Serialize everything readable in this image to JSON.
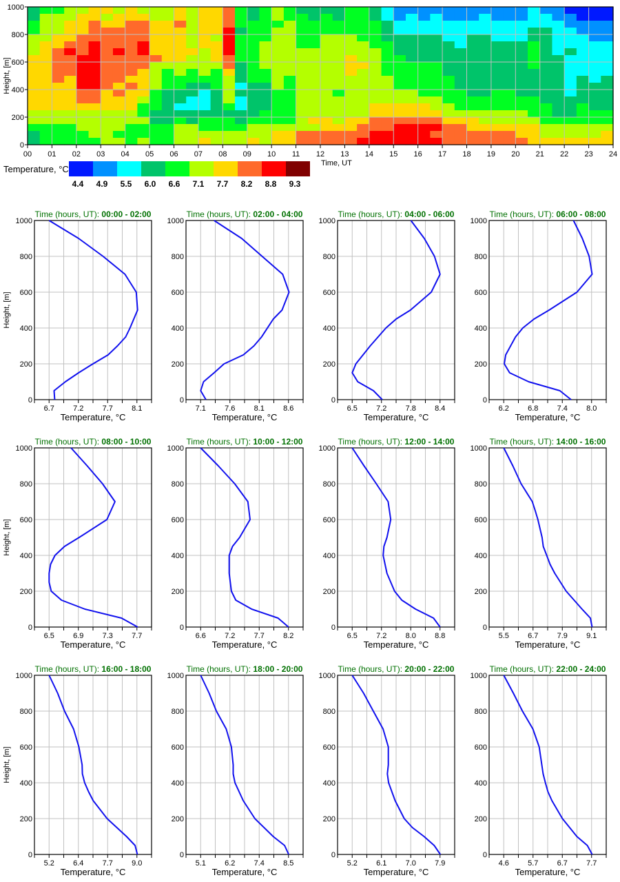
{
  "chart_data": [
    {
      "type": "heatmap",
      "xlabel": "Time, UT",
      "ylabel": "Height, [m]",
      "xlim": [
        0,
        24
      ],
      "ylim": [
        0,
        1000
      ],
      "xticks": [
        "00",
        "01",
        "02",
        "03",
        "04",
        "05",
        "06",
        "07",
        "08",
        "09",
        "10",
        "11",
        "12",
        "13",
        "14",
        "15",
        "16",
        "17",
        "18",
        "19",
        "20",
        "21",
        "22",
        "23",
        "24"
      ],
      "yticks": [
        "0",
        "200",
        "400",
        "600",
        "800",
        "1000"
      ],
      "grid": true,
      "colorbar": {
        "label": "Temperature, °C",
        "colors": [
          "#0019ff",
          "#0091ff",
          "#00ffff",
          "#00c46a",
          "#00ff22",
          "#b4ff00",
          "#ffd800",
          "#ff6a2b",
          "#ff0000",
          "#800000"
        ],
        "boundaries": [
          "4.4",
          "4.9",
          "5.5",
          "6.0",
          "6.6",
          "7.1",
          "7.7",
          "8.2",
          "8.8",
          "9.3"
        ]
      },
      "time_step_hours": 0.5,
      "height_step_m": 50,
      "levels_top_to_bottom": [
        "344556656555656674345433334432111111111112110000",
        "355566566655656674345443434432121211121112211000",
        "455667667766756674444544444443222222222222221111",
        "455667777766656683445544444443222222222223322111",
        "556677777766656584445544555443333322332223322211",
        "566778777866656684455544555544333332333334322222",
        "567878787866665684455555555554333333333334323222",
        "667788777776655674455555556554433333333334332222",
        "667788777755555573455555556654444433333334332222",
        "667788777654545463445555556554444433333333332222",
        "667688776654444453445455555555444443333333332323",
        "666688767654433452335455555555444443333333332333",
        "666677676643332353334455545555554444334433332333",
        "666677666543322352334455555555555544444444333333",
        "666666666443222342334455555566666554444444433433",
        "555555555433333333344455555566666655555554433444",
        "555555555533434443444456656677777766655555444444",
        "444455554444554444555555666777888877666666555555",
        "344445544444555555556677777788888777777766555556",
        "344444554544556555656677777888888877777776666666"
      ]
    },
    {
      "type": "line",
      "title_prefix": "Time (hours, UT): ",
      "time_range": "00:00 - 02:00",
      "xlabel": "Temperature, °C",
      "ylabel": "Height, [m]",
      "xticks": [
        "6.7",
        "7.2",
        "7.7",
        "8.1"
      ],
      "xtick_range": [
        6.7,
        8.1
      ],
      "yticks": [
        "0",
        "200",
        "400",
        "600",
        "800",
        "1000"
      ],
      "ylim": [
        0,
        1000
      ],
      "height": [
        0,
        50,
        100,
        150,
        200,
        250,
        300,
        350,
        400,
        500,
        600,
        700,
        800,
        900,
        1000
      ],
      "temperature": [
        6.79,
        6.78,
        6.96,
        7.17,
        7.4,
        7.64,
        7.79,
        7.92,
        7.99,
        8.11,
        8.09,
        7.91,
        7.56,
        7.17,
        6.7
      ]
    },
    {
      "type": "line",
      "title_prefix": "Time (hours, UT): ",
      "time_range": "02:00 - 04:00",
      "xlabel": "Temperature, °C",
      "ylabel": "",
      "xticks": [
        "7.1",
        "7.6",
        "8.1",
        "8.6"
      ],
      "xtick_range": [
        7.1,
        8.6
      ],
      "yticks": [
        "0",
        "200",
        "400",
        "600",
        "800",
        "1000"
      ],
      "ylim": [
        0,
        1000
      ],
      "height": [
        0,
        50,
        100,
        150,
        200,
        250,
        300,
        350,
        450,
        500,
        600,
        700,
        800,
        900,
        1000
      ],
      "temperature": [
        7.19,
        7.1,
        7.15,
        7.33,
        7.5,
        7.83,
        8.01,
        8.14,
        8.34,
        8.49,
        8.61,
        8.5,
        8.15,
        7.8,
        7.33
      ]
    },
    {
      "type": "line",
      "title_prefix": "Time (hours, UT): ",
      "time_range": "04:00 - 06:00",
      "xlabel": "Temperature, °C",
      "ylabel": "",
      "xticks": [
        "6.5",
        "7.2",
        "7.8",
        "8.4"
      ],
      "xtick_range": [
        6.5,
        8.4
      ],
      "yticks": [
        "0",
        "200",
        "400",
        "600",
        "800",
        "1000"
      ],
      "ylim": [
        0,
        1000
      ],
      "height": [
        0,
        50,
        100,
        150,
        200,
        300,
        400,
        450,
        500,
        600,
        700,
        800,
        900,
        1000
      ],
      "temperature": [
        7.15,
        6.96,
        6.62,
        6.5,
        6.58,
        6.89,
        7.23,
        7.45,
        7.76,
        8.21,
        8.4,
        8.28,
        8.06,
        7.77
      ]
    },
    {
      "type": "line",
      "title_prefix": "Time (hours, UT): ",
      "time_range": "06:00 - 08:00",
      "xlabel": "Temperature, °C",
      "ylabel": "",
      "xticks": [
        "6.2",
        "6.8",
        "7.4",
        "8.0"
      ],
      "xtick_range": [
        6.2,
        8.0
      ],
      "yticks": [
        "0",
        "200",
        "400",
        "600",
        "800",
        "1000"
      ],
      "ylim": [
        0,
        1000
      ],
      "height": [
        0,
        50,
        100,
        150,
        200,
        250,
        350,
        400,
        450,
        500,
        600,
        700,
        800,
        900,
        1000
      ],
      "temperature": [
        7.58,
        7.35,
        6.71,
        6.32,
        6.21,
        6.24,
        6.44,
        6.59,
        6.82,
        7.13,
        7.7,
        8.01,
        7.95,
        7.81,
        7.63
      ]
    },
    {
      "type": "line",
      "title_prefix": "Time (hours, UT): ",
      "time_range": "08:00 - 10:00",
      "xlabel": "Temperature, °C",
      "ylabel": "Height, [m]",
      "xticks": [
        "6.5",
        "6.9",
        "7.3",
        "7.7"
      ],
      "xtick_range": [
        6.5,
        7.7
      ],
      "yticks": [
        "0",
        "200",
        "400",
        "600",
        "800",
        "1000"
      ],
      "ylim": [
        0,
        1000
      ],
      "height": [
        0,
        50,
        100,
        150,
        200,
        250,
        300,
        350,
        400,
        450,
        500,
        600,
        700,
        800,
        900,
        1000
      ],
      "temperature": [
        7.71,
        7.49,
        6.99,
        6.67,
        6.53,
        6.5,
        6.5,
        6.52,
        6.58,
        6.71,
        6.91,
        7.29,
        7.4,
        7.23,
        7.02,
        6.8
      ]
    },
    {
      "type": "line",
      "title_prefix": "Time (hours, UT): ",
      "time_range": "10:00 - 12:00",
      "xlabel": "Temperature, °C",
      "ylabel": "",
      "xticks": [
        "6.6",
        "7.2",
        "7.7",
        "8.2"
      ],
      "xtick_range": [
        6.6,
        8.2
      ],
      "yticks": [
        "0",
        "200",
        "400",
        "600",
        "800",
        "1000"
      ],
      "ylim": [
        0,
        1000
      ],
      "height": [
        0,
        50,
        100,
        150,
        200,
        300,
        400,
        450,
        500,
        600,
        700,
        800,
        900,
        1000
      ],
      "temperature": [
        8.2,
        8.01,
        7.53,
        7.24,
        7.16,
        7.12,
        7.12,
        7.18,
        7.31,
        7.5,
        7.46,
        7.22,
        6.92,
        6.6
      ]
    },
    {
      "type": "line",
      "title_prefix": "Time (hours, UT): ",
      "time_range": "12:00 - 14:00",
      "xlabel": "Temperature, °C",
      "ylabel": "",
      "xticks": [
        "6.5",
        "7.2",
        "8.0",
        "8.8"
      ],
      "xtick_range": [
        6.5,
        8.8
      ],
      "yticks": [
        "0",
        "200",
        "400",
        "600",
        "800",
        "1000"
      ],
      "ylim": [
        0,
        1000
      ],
      "height": [
        0,
        50,
        100,
        150,
        200,
        300,
        400,
        450,
        500,
        600,
        700,
        800,
        900,
        1000
      ],
      "temperature": [
        8.8,
        8.63,
        8.16,
        7.8,
        7.61,
        7.41,
        7.31,
        7.33,
        7.41,
        7.51,
        7.44,
        7.13,
        6.81,
        6.5
      ]
    },
    {
      "type": "line",
      "title_prefix": "Time (hours, UT): ",
      "time_range": "14:00 - 16:00",
      "xlabel": "Temperature, °C",
      "ylabel": "",
      "xticks": [
        "5.5",
        "6.7",
        "7.9",
        "9.1"
      ],
      "xtick_range": [
        5.5,
        9.1
      ],
      "yticks": [
        "0",
        "200",
        "400",
        "600",
        "800",
        "1000"
      ],
      "ylim": [
        0,
        1000
      ],
      "height": [
        0,
        50,
        100,
        200,
        300,
        350,
        400,
        450,
        500,
        600,
        650,
        700,
        800,
        900,
        1000
      ],
      "temperature": [
        9.12,
        9.05,
        8.71,
        8.06,
        7.59,
        7.4,
        7.26,
        7.12,
        7.07,
        6.9,
        6.79,
        6.67,
        6.21,
        5.87,
        5.5
      ]
    },
    {
      "type": "line",
      "title_prefix": "Time (hours, UT): ",
      "time_range": "16:00 - 18:00",
      "xlabel": "Temperature, °C",
      "ylabel": "Height, [m]",
      "xticks": [
        "5.2",
        "6.4",
        "7.7",
        "9.0"
      ],
      "xtick_range": [
        5.2,
        9.0
      ],
      "yticks": [
        "0",
        "200",
        "400",
        "600",
        "800",
        "1000"
      ],
      "ylim": [
        0,
        1000
      ],
      "height": [
        0,
        50,
        100,
        200,
        300,
        350,
        400,
        450,
        500,
        600,
        700,
        800,
        900,
        1000
      ],
      "temperature": [
        9.02,
        8.92,
        8.55,
        7.71,
        7.11,
        6.91,
        6.74,
        6.64,
        6.63,
        6.49,
        6.26,
        5.87,
        5.57,
        5.2
      ]
    },
    {
      "type": "line",
      "title_prefix": "Time (hours, UT): ",
      "time_range": "18:00 - 20:00",
      "xlabel": "Temperature, °C",
      "ylabel": "",
      "xticks": [
        "5.1",
        "6.2",
        "7.4",
        "8.5"
      ],
      "xtick_range": [
        5.1,
        8.5
      ],
      "yticks": [
        "0",
        "200",
        "400",
        "600",
        "800",
        "1000"
      ],
      "ylim": [
        0,
        1000
      ],
      "height": [
        0,
        50,
        100,
        200,
        300,
        400,
        450,
        500,
        600,
        700,
        800,
        900,
        1000
      ],
      "temperature": [
        8.51,
        8.35,
        7.91,
        7.2,
        6.75,
        6.43,
        6.36,
        6.36,
        6.29,
        6.09,
        5.71,
        5.43,
        5.1
      ]
    },
    {
      "type": "line",
      "title_prefix": "Time (hours, UT): ",
      "time_range": "20:00 - 22:00",
      "xlabel": "Temperature, °C",
      "ylabel": "",
      "xticks": [
        "5.2",
        "6.1",
        "7.0",
        "7.9"
      ],
      "xtick_range": [
        5.2,
        7.9
      ],
      "yticks": [
        "0",
        "200",
        "400",
        "600",
        "800",
        "1000"
      ],
      "ylim": [
        0,
        1000
      ],
      "height": [
        0,
        50,
        100,
        150,
        200,
        300,
        400,
        450,
        500,
        600,
        700,
        800,
        900,
        1000
      ],
      "temperature": [
        7.91,
        7.72,
        7.41,
        7.05,
        6.8,
        6.52,
        6.32,
        6.28,
        6.31,
        6.31,
        6.15,
        5.85,
        5.55,
        5.2
      ]
    },
    {
      "type": "line",
      "title_prefix": "Time (hours, UT): ",
      "time_range": "22:00 - 24:00",
      "xlabel": "Temperature, °C",
      "ylabel": "",
      "xticks": [
        "4.6",
        "5.7",
        "6.7",
        "7.7"
      ],
      "xtick_range": [
        4.6,
        7.7
      ],
      "yticks": [
        "0",
        "200",
        "400",
        "600",
        "800",
        "1000"
      ],
      "ylim": [
        0,
        1000
      ],
      "height": [
        0,
        50,
        100,
        200,
        300,
        350,
        400,
        450,
        600,
        700,
        800,
        900,
        1000
      ],
      "temperature": [
        7.72,
        7.55,
        7.18,
        6.67,
        6.3,
        6.16,
        6.07,
        5.99,
        5.85,
        5.63,
        5.26,
        4.94,
        4.6
      ]
    }
  ]
}
